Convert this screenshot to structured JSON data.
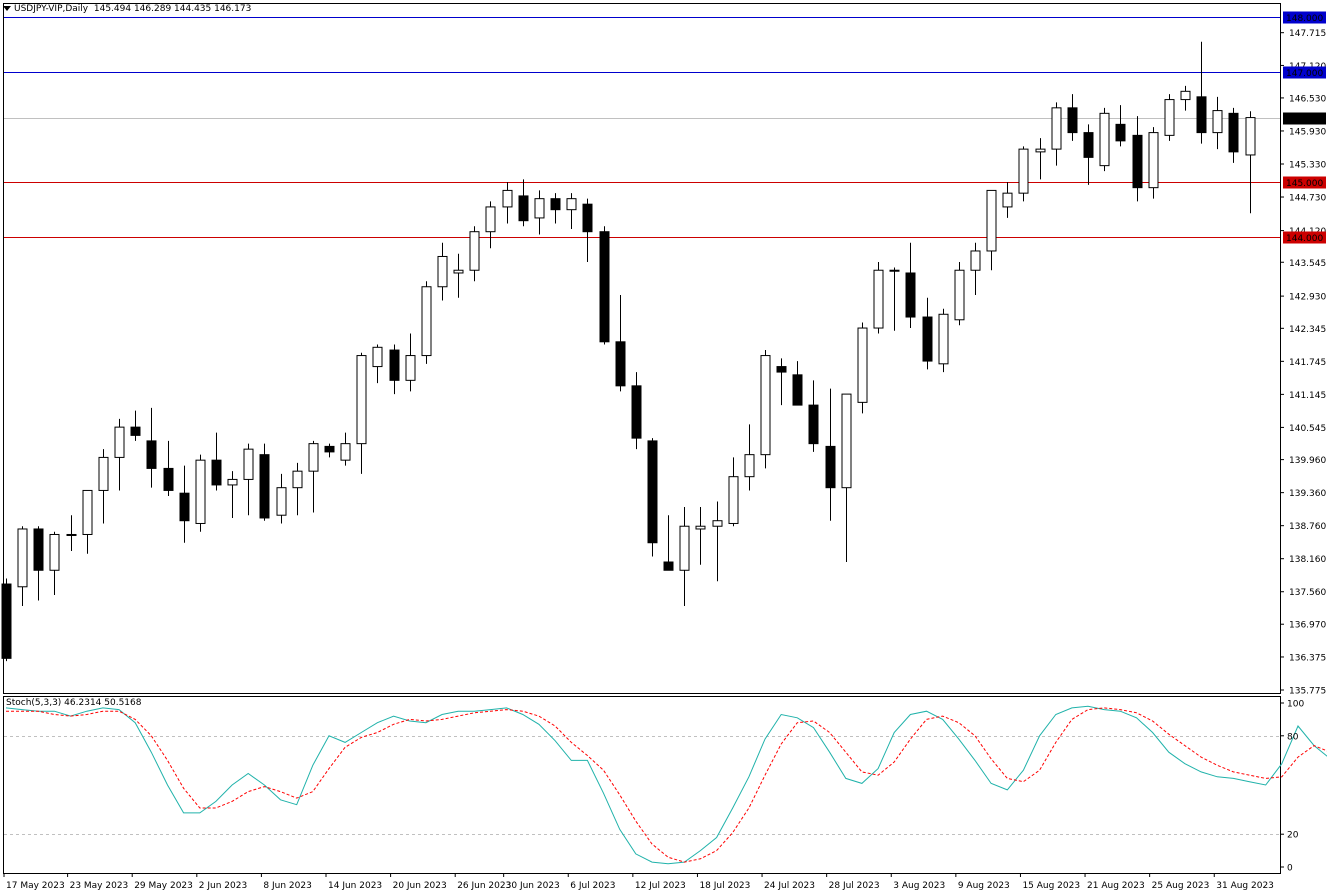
{
  "header": {
    "symbol": "USDJPY-VIP,Daily",
    "ohlc": "145.494 146.289 144.435 146.173"
  },
  "stoch_label": "Stoch(5,3,3) 46.2314 50.5168",
  "colors": {
    "bull_fill": "#ffffff",
    "bear_fill": "#000000",
    "candle_border": "#000000",
    "blue_level": "#0000cd",
    "red_level": "#cc0000",
    "current_price_line": "#c0c0c0",
    "stoch_main": "#20b2aa",
    "stoch_signal": "#ff0000"
  },
  "chart_data": [
    {
      "type": "candlestick",
      "symbol": "USDJPY-VIP",
      "timeframe": "Daily",
      "ylim": [
        135.5,
        148.3
      ],
      "price_axis_ticks": [
        "147.715",
        "147.120",
        "146.530",
        "145.930",
        "145.330",
        "144.730",
        "144.120",
        "143.545",
        "142.930",
        "142.345",
        "141.745",
        "141.145",
        "140.545",
        "139.960",
        "139.360",
        "138.760",
        "138.160",
        "137.560",
        "136.970",
        "136.375",
        "135.775"
      ],
      "date_labels": [
        "17 May 2023",
        "23 May 2023",
        "29 May 2023",
        "2 Jun 2023",
        "8 Jun 2023",
        "14 Jun 2023",
        "20 Jun 2023",
        "26 Jun 2023",
        "30 Jun 2023",
        "6 Jul 2023",
        "12 Jul 2023",
        "18 Jul 2023",
        "24 Jul 2023",
        "28 Jul 2023",
        "3 Aug 2023",
        "9 Aug 2023",
        "15 Aug 2023",
        "21 Aug 2023",
        "25 Aug 2023",
        "31 Aug 2023"
      ],
      "horizontal_levels": [
        {
          "price": 148.0,
          "label": "148.000",
          "color": "blue"
        },
        {
          "price": 147.0,
          "label": "147.000",
          "color": "blue"
        },
        {
          "price": 146.173,
          "label": "146.173",
          "color": "gray"
        },
        {
          "price": 145.0,
          "label": "145.000",
          "color": "red"
        },
        {
          "price": 144.0,
          "label": "144.000",
          "color": "red"
        }
      ],
      "candles": [
        [
          137.7,
          137.8,
          136.3,
          136.35
        ],
        [
          137.65,
          138.75,
          137.3,
          138.7
        ],
        [
          138.7,
          138.75,
          137.4,
          137.95
        ],
        [
          137.95,
          138.65,
          137.5,
          138.6
        ],
        [
          138.6,
          138.95,
          138.3,
          138.6
        ],
        [
          138.6,
          139.4,
          138.25,
          139.4
        ],
        [
          139.4,
          140.15,
          138.8,
          140.0
        ],
        [
          140.0,
          140.7,
          139.4,
          140.55
        ],
        [
          140.55,
          140.85,
          140.3,
          140.4
        ],
        [
          140.3,
          140.9,
          139.45,
          139.8
        ],
        [
          139.8,
          140.3,
          139.3,
          139.4
        ],
        [
          139.35,
          139.85,
          138.45,
          138.85
        ],
        [
          138.8,
          140.05,
          138.65,
          139.95
        ],
        [
          139.95,
          140.45,
          139.4,
          139.5
        ],
        [
          139.5,
          139.75,
          138.9,
          139.6
        ],
        [
          139.6,
          140.25,
          138.95,
          140.15
        ],
        [
          140.05,
          140.25,
          138.85,
          138.9
        ],
        [
          138.95,
          139.7,
          138.8,
          139.45
        ],
        [
          139.45,
          139.9,
          138.95,
          139.75
        ],
        [
          139.75,
          140.3,
          139.0,
          140.25
        ],
        [
          140.2,
          140.25,
          140.0,
          140.1
        ],
        [
          139.95,
          140.45,
          139.85,
          140.25
        ],
        [
          140.25,
          141.9,
          139.7,
          141.85
        ],
        [
          141.65,
          142.05,
          141.35,
          142.0
        ],
        [
          141.95,
          142.05,
          141.15,
          141.4
        ],
        [
          141.4,
          142.25,
          141.2,
          141.85
        ],
        [
          141.85,
          143.2,
          141.7,
          143.1
        ],
        [
          143.1,
          143.9,
          142.85,
          143.65
        ],
        [
          143.35,
          143.7,
          142.9,
          143.4
        ],
        [
          143.4,
          144.2,
          143.2,
          144.1
        ],
        [
          144.1,
          144.65,
          143.8,
          144.55
        ],
        [
          144.55,
          145.0,
          144.25,
          144.85
        ],
        [
          144.75,
          145.05,
          144.2,
          144.3
        ],
        [
          144.35,
          144.85,
          144.05,
          144.7
        ],
        [
          144.7,
          144.8,
          144.25,
          144.5
        ],
        [
          144.5,
          144.8,
          144.15,
          144.7
        ],
        [
          144.6,
          144.7,
          143.55,
          144.1
        ],
        [
          144.1,
          144.2,
          142.05,
          142.1
        ],
        [
          142.1,
          142.95,
          141.2,
          141.3
        ],
        [
          141.3,
          141.55,
          140.15,
          140.35
        ],
        [
          140.3,
          140.35,
          138.2,
          138.45
        ],
        [
          138.1,
          138.95,
          137.95,
          137.95
        ],
        [
          137.95,
          139.1,
          137.3,
          138.75
        ],
        [
          138.7,
          139.1,
          138.05,
          138.75
        ],
        [
          138.75,
          139.2,
          137.75,
          138.85
        ],
        [
          138.8,
          140.0,
          138.75,
          139.65
        ],
        [
          139.65,
          140.6,
          139.4,
          140.05
        ],
        [
          140.05,
          141.95,
          139.8,
          141.85
        ],
        [
          141.65,
          141.8,
          140.95,
          141.55
        ],
        [
          141.5,
          141.75,
          141.05,
          140.95
        ],
        [
          140.95,
          141.4,
          140.1,
          140.25
        ],
        [
          140.2,
          141.25,
          138.85,
          139.45
        ],
        [
          139.45,
          141.15,
          138.1,
          141.15
        ],
        [
          141.0,
          142.45,
          140.8,
          142.35
        ],
        [
          142.35,
          143.55,
          142.25,
          143.4
        ],
        [
          143.4,
          143.45,
          142.3,
          143.4
        ],
        [
          143.35,
          143.9,
          142.35,
          142.55
        ],
        [
          142.55,
          142.9,
          141.6,
          141.75
        ],
        [
          141.7,
          142.7,
          141.55,
          142.6
        ],
        [
          142.5,
          143.55,
          142.4,
          143.4
        ],
        [
          143.4,
          143.9,
          142.95,
          143.75
        ],
        [
          143.75,
          144.75,
          143.4,
          144.85
        ],
        [
          144.55,
          145.0,
          144.35,
          144.8
        ],
        [
          144.8,
          145.65,
          144.65,
          145.6
        ],
        [
          145.55,
          145.8,
          145.05,
          145.6
        ],
        [
          145.6,
          146.45,
          145.3,
          146.35
        ],
        [
          146.35,
          146.6,
          145.75,
          145.9
        ],
        [
          145.9,
          146.05,
          144.95,
          145.45
        ],
        [
          145.3,
          146.35,
          145.2,
          146.25
        ],
        [
          146.05,
          146.4,
          145.65,
          145.75
        ],
        [
          145.85,
          146.2,
          144.65,
          144.9
        ],
        [
          144.9,
          146.0,
          144.7,
          145.9
        ],
        [
          145.85,
          146.6,
          145.75,
          146.5
        ],
        [
          146.5,
          146.75,
          146.3,
          146.65
        ],
        [
          146.55,
          147.55,
          145.7,
          145.9
        ],
        [
          145.9,
          146.55,
          145.6,
          146.3
        ],
        [
          146.25,
          146.35,
          145.35,
          145.55
        ],
        [
          145.494,
          146.289,
          144.435,
          146.173
        ]
      ]
    },
    {
      "type": "line",
      "name": "Stoch(5,3,3)",
      "ylim": [
        0,
        100
      ],
      "levels": [
        80,
        20
      ],
      "tick_labels": [
        "100",
        "80",
        "20",
        "0"
      ],
      "series": [
        {
          "name": "main",
          "values": [
            97,
            96,
            95,
            95,
            92,
            95,
            97,
            96,
            88,
            70,
            50,
            33,
            33,
            40,
            50,
            57,
            50,
            41,
            38,
            62,
            80,
            76,
            82,
            88,
            92,
            89,
            88,
            93,
            95,
            95,
            96,
            97,
            93,
            87,
            77,
            65,
            65,
            45,
            23,
            8,
            3,
            2,
            3,
            10,
            18,
            36,
            55,
            78,
            93,
            91,
            85,
            70,
            54,
            51,
            60,
            82,
            93,
            95,
            90,
            78,
            65,
            51,
            47,
            59,
            80,
            93,
            97,
            98,
            96,
            95,
            91,
            82,
            70,
            63,
            58,
            55,
            54,
            52,
            50,
            63,
            86,
            74,
            66,
            52,
            41,
            46
          ]
        },
        {
          "name": "signal",
          "values": [
            95,
            95,
            95,
            93,
            92,
            93,
            95,
            95,
            90,
            80,
            65,
            48,
            36,
            36,
            40,
            46,
            49,
            46,
            42,
            46,
            60,
            73,
            79,
            82,
            87,
            90,
            89,
            90,
            92,
            94,
            95,
            96,
            95,
            92,
            86,
            76,
            68,
            59,
            44,
            28,
            14,
            6,
            3,
            5,
            10,
            21,
            36,
            56,
            75,
            88,
            89,
            82,
            70,
            58,
            56,
            64,
            78,
            90,
            92,
            88,
            80,
            66,
            54,
            52,
            59,
            76,
            90,
            96,
            97,
            96,
            94,
            89,
            81,
            74,
            67,
            62,
            58,
            56,
            54,
            55,
            67,
            74,
            70,
            61,
            53,
            51
          ]
        }
      ]
    }
  ]
}
